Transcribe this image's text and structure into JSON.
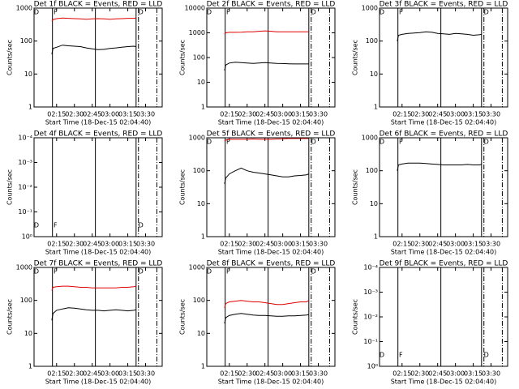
{
  "chart_data": [
    {
      "type": "line",
      "title": "Det 1f BLACK = Events, RED = LLD",
      "xlabel": "Start Time (18-Dec-15 02:04:40)",
      "ylabel": "Counts/sec",
      "log_y": true,
      "xlim": [
        -4,
        104
      ],
      "xticks": [
        {
          "value": 15,
          "label": "02:15"
        },
        {
          "value": 30,
          "label": "02:30"
        },
        {
          "value": 45,
          "label": "02:45"
        },
        {
          "value": 60,
          "label": "03:00"
        },
        {
          "value": 75,
          "label": "03:15"
        },
        {
          "value": 90,
          "label": "03:30"
        }
      ],
      "ylim": [
        1,
        1000
      ],
      "yticks": [
        1,
        10,
        100,
        1000
      ],
      "x": [
        11,
        12,
        15,
        20,
        25,
        30,
        35,
        40,
        45,
        50,
        55,
        60,
        65,
        70,
        75,
        80,
        82
      ],
      "series": [
        {
          "color": "#000000",
          "values": [
            40,
            60,
            65,
            75,
            72,
            70,
            68,
            62,
            58,
            55,
            56,
            60,
            62,
            65,
            68,
            70,
            68
          ]
        },
        {
          "color": "#e00000",
          "values": [
            400,
            450,
            480,
            500,
            490,
            480,
            470,
            460,
            470,
            480,
            470,
            460,
            470,
            480,
            490,
            490,
            500
          ]
        }
      ],
      "vlines": [
        {
          "x": 11.5,
          "style": "solid"
        },
        {
          "x": 47.7,
          "style": "solid"
        },
        {
          "x": 82,
          "style": "solid"
        },
        {
          "x": 84,
          "style": "dashdot"
        },
        {
          "x": 99.5,
          "style": "dashdot"
        }
      ],
      "marker_position": "top",
      "markers": [
        {
          "x": -2,
          "label": "D"
        },
        {
          "x": 14,
          "label": "F"
        },
        {
          "x": 86,
          "label": "D"
        }
      ]
    },
    {
      "type": "line",
      "title": "Det 2f BLACK = Events, RED = LLD",
      "xlabel": "Start Time (18-Dec-15 02:04:40)",
      "ylabel": "Counts/sec",
      "log_y": true,
      "xlim": [
        -4,
        104
      ],
      "xticks": [
        {
          "value": 15,
          "label": "02:15"
        },
        {
          "value": 30,
          "label": "02:30"
        },
        {
          "value": 45,
          "label": "02:45"
        },
        {
          "value": 60,
          "label": "03:00"
        },
        {
          "value": 75,
          "label": "03:15"
        },
        {
          "value": 90,
          "label": "03:30"
        }
      ],
      "ylim": [
        1,
        10000
      ],
      "yticks": [
        1,
        10,
        100,
        1000,
        10000
      ],
      "x": [
        11,
        12,
        15,
        20,
        25,
        30,
        35,
        40,
        45,
        50,
        55,
        60,
        65,
        70,
        75,
        80,
        82
      ],
      "series": [
        {
          "color": "#000000",
          "values": [
            30,
            50,
            60,
            65,
            62,
            60,
            58,
            60,
            62,
            60,
            58,
            57,
            56,
            55,
            55,
            55,
            55
          ]
        },
        {
          "color": "#e00000",
          "values": [
            900,
            1000,
            1050,
            1050,
            1060,
            1100,
            1100,
            1150,
            1200,
            1150,
            1100,
            1100,
            1100,
            1100,
            1100,
            1100,
            1100
          ]
        }
      ],
      "vlines": [
        {
          "x": 11.5,
          "style": "solid"
        },
        {
          "x": 47.7,
          "style": "solid"
        },
        {
          "x": 82,
          "style": "solid"
        },
        {
          "x": 84,
          "style": "dashdot"
        },
        {
          "x": 99.5,
          "style": "dashdot"
        }
      ],
      "marker_position": "top",
      "markers": [
        {
          "x": -2,
          "label": "D"
        },
        {
          "x": 14,
          "label": "F"
        },
        {
          "x": 86,
          "label": "D"
        }
      ]
    },
    {
      "type": "line",
      "title": "Det 3f BLACK = Events, RED = LLD",
      "xlabel": "Start Time (18-Dec-15 02:04:40)",
      "ylabel": "Counts/sec",
      "log_y": true,
      "xlim": [
        -4,
        104
      ],
      "xticks": [
        {
          "value": 15,
          "label": "02:15"
        },
        {
          "value": 30,
          "label": "02:30"
        },
        {
          "value": 45,
          "label": "02:45"
        },
        {
          "value": 60,
          "label": "03:00"
        },
        {
          "value": 75,
          "label": "03:15"
        },
        {
          "value": 90,
          "label": "03:30"
        }
      ],
      "ylim": [
        1,
        1000
      ],
      "yticks": [
        1,
        10,
        100,
        1000
      ],
      "x": [
        11,
        12,
        15,
        20,
        25,
        30,
        35,
        40,
        45,
        50,
        55,
        60,
        65,
        70,
        75,
        80,
        82
      ],
      "series": [
        {
          "color": "#000000",
          "values": [
            100,
            150,
            160,
            170,
            175,
            180,
            190,
            185,
            170,
            165,
            160,
            170,
            165,
            160,
            150,
            155,
            160
          ]
        }
      ],
      "vlines": [
        {
          "x": 11.5,
          "style": "solid"
        },
        {
          "x": 47.7,
          "style": "solid"
        },
        {
          "x": 82,
          "style": "solid"
        },
        {
          "x": 84,
          "style": "dashdot"
        },
        {
          "x": 99.5,
          "style": "dashdot"
        }
      ],
      "marker_position": "top",
      "markers": [
        {
          "x": -2,
          "label": "D"
        },
        {
          "x": 14,
          "label": "F"
        },
        {
          "x": 86,
          "label": "D"
        }
      ]
    },
    {
      "type": "line",
      "title": "Det 4f BLACK = Events, RED = LLD",
      "xlabel": "Start Time (18-Dec-15 02:04:40)",
      "ylabel": "Counts/sec",
      "log_y": true,
      "xlim": [
        -4,
        104
      ],
      "xticks": [
        {
          "value": 15,
          "label": "02:15"
        },
        {
          "value": 30,
          "label": "02:30"
        },
        {
          "value": 45,
          "label": "02:45"
        },
        {
          "value": 60,
          "label": "03:00"
        },
        {
          "value": 75,
          "label": "03:15"
        },
        {
          "value": 90,
          "label": "03:30"
        }
      ],
      "ylim": [
        1,
        0.0001
      ],
      "yticks": [
        {
          "value": 1,
          "label": "10⁰"
        },
        {
          "value": 0.1,
          "label": "10⁻¹"
        },
        {
          "value": 0.01,
          "label": "10⁻²"
        },
        {
          "value": 0.001,
          "label": "10⁻³"
        },
        {
          "value": 0.0001,
          "label": "10⁻⁴"
        }
      ],
      "x": [],
      "series": [],
      "vlines": [
        {
          "x": 11.5,
          "style": "solid"
        },
        {
          "x": 47.7,
          "style": "solid"
        },
        {
          "x": 82,
          "style": "solid"
        },
        {
          "x": 84,
          "style": "dashdot"
        },
        {
          "x": 99.5,
          "style": "dashdot"
        }
      ],
      "marker_position": "bottom",
      "markers": [
        {
          "x": -2,
          "label": "D"
        },
        {
          "x": 14,
          "label": "F"
        },
        {
          "x": 86,
          "label": "D"
        }
      ]
    },
    {
      "type": "line",
      "title": "Det 5f BLACK = Events, RED = LLD",
      "xlabel": "Start Time (18-Dec-15 02:04:40)",
      "ylabel": "Counts/sec",
      "log_y": true,
      "xlim": [
        -4,
        104
      ],
      "xticks": [
        {
          "value": 15,
          "label": "02:15"
        },
        {
          "value": 30,
          "label": "02:30"
        },
        {
          "value": 45,
          "label": "02:45"
        },
        {
          "value": 60,
          "label": "03:00"
        },
        {
          "value": 75,
          "label": "03:15"
        },
        {
          "value": 90,
          "label": "03:30"
        }
      ],
      "ylim": [
        1,
        1000
      ],
      "yticks": [
        1,
        10,
        100,
        1000
      ],
      "x": [
        11,
        12,
        15,
        20,
        25,
        30,
        35,
        40,
        45,
        50,
        55,
        60,
        65,
        70,
        75,
        80,
        82
      ],
      "series": [
        {
          "color": "#000000",
          "values": [
            40,
            60,
            80,
            100,
            120,
            100,
            90,
            85,
            80,
            75,
            70,
            65,
            65,
            70,
            72,
            75,
            80
          ]
        },
        {
          "color": "#e00000",
          "values": [
            800,
            850,
            900,
            900,
            900,
            900,
            920,
            900,
            900,
            900,
            920,
            930,
            950,
            950,
            950,
            950,
            950
          ]
        }
      ],
      "vlines": [
        {
          "x": 11.5,
          "style": "solid"
        },
        {
          "x": 47.7,
          "style": "solid"
        },
        {
          "x": 82,
          "style": "solid"
        },
        {
          "x": 84,
          "style": "dashdot"
        },
        {
          "x": 99.5,
          "style": "dashdot"
        }
      ],
      "marker_position": "top",
      "markers": [
        {
          "x": -2,
          "label": "D"
        },
        {
          "x": 14,
          "label": "F"
        },
        {
          "x": 86,
          "label": "D"
        }
      ]
    },
    {
      "type": "line",
      "title": "Det 6f BLACK = Events, RED = LLD",
      "xlabel": "Start Time (18-Dec-15 02:04:40)",
      "ylabel": "Counts/sec",
      "log_y": true,
      "xlim": [
        -4,
        104
      ],
      "xticks": [
        {
          "value": 15,
          "label": "02:15"
        },
        {
          "value": 30,
          "label": "02:30"
        },
        {
          "value": 45,
          "label": "02:45"
        },
        {
          "value": 60,
          "label": "03:00"
        },
        {
          "value": 75,
          "label": "03:15"
        },
        {
          "value": 90,
          "label": "03:30"
        }
      ],
      "ylim": [
        1,
        1000
      ],
      "yticks": [
        1,
        10,
        100,
        1000
      ],
      "x": [
        11,
        12,
        15,
        20,
        25,
        30,
        35,
        40,
        45,
        50,
        55,
        60,
        65,
        70,
        75,
        80,
        82
      ],
      "series": [
        {
          "color": "#000000",
          "values": [
            100,
            150,
            160,
            170,
            170,
            170,
            165,
            160,
            155,
            150,
            150,
            150,
            150,
            155,
            150,
            150,
            155
          ]
        }
      ],
      "vlines": [
        {
          "x": 11.5,
          "style": "solid"
        },
        {
          "x": 47.7,
          "style": "solid"
        },
        {
          "x": 82,
          "style": "solid"
        },
        {
          "x": 84,
          "style": "dashdot"
        },
        {
          "x": 99.5,
          "style": "dashdot"
        }
      ],
      "marker_position": "top",
      "markers": [
        {
          "x": -2,
          "label": "D"
        },
        {
          "x": 14,
          "label": "F"
        },
        {
          "x": 86,
          "label": "D"
        }
      ]
    },
    {
      "type": "line",
      "title": "Det 7f BLACK = Events, RED = LLD",
      "xlabel": "Start Time (18-Dec-15 02:04:40)",
      "ylabel": "Counts/sec",
      "log_y": true,
      "xlim": [
        -4,
        104
      ],
      "xticks": [
        {
          "value": 15,
          "label": "02:15"
        },
        {
          "value": 30,
          "label": "02:30"
        },
        {
          "value": 45,
          "label": "02:45"
        },
        {
          "value": 60,
          "label": "03:00"
        },
        {
          "value": 75,
          "label": "03:15"
        },
        {
          "value": 90,
          "label": "03:30"
        }
      ],
      "ylim": [
        1,
        1000
      ],
      "yticks": [
        1,
        10,
        100,
        1000
      ],
      "x": [
        11,
        12,
        15,
        20,
        25,
        30,
        35,
        40,
        45,
        50,
        55,
        60,
        65,
        70,
        75,
        80,
        82
      ],
      "series": [
        {
          "color": "#000000",
          "values": [
            25,
            40,
            50,
            55,
            60,
            58,
            55,
            52,
            50,
            50,
            48,
            50,
            52,
            50,
            48,
            50,
            52
          ]
        },
        {
          "color": "#e00000",
          "values": [
            200,
            250,
            260,
            270,
            270,
            260,
            250,
            250,
            240,
            240,
            240,
            240,
            240,
            250,
            250,
            260,
            270
          ]
        }
      ],
      "vlines": [
        {
          "x": 11.5,
          "style": "solid"
        },
        {
          "x": 47.7,
          "style": "solid"
        },
        {
          "x": 82,
          "style": "solid"
        },
        {
          "x": 84,
          "style": "dashdot"
        },
        {
          "x": 99.5,
          "style": "dashdot"
        }
      ],
      "marker_position": "top",
      "markers": [
        {
          "x": -2,
          "label": "D"
        },
        {
          "x": 14,
          "label": "F"
        },
        {
          "x": 86,
          "label": "D"
        }
      ]
    },
    {
      "type": "line",
      "title": "Det 8f BLACK = Events, RED = LLD",
      "xlabel": "Start Time (18-Dec-15 02:04:40)",
      "ylabel": "Counts/sec",
      "log_y": true,
      "xlim": [
        -4,
        104
      ],
      "xticks": [
        {
          "value": 15,
          "label": "02:15"
        },
        {
          "value": 30,
          "label": "02:30"
        },
        {
          "value": 45,
          "label": "02:45"
        },
        {
          "value": 60,
          "label": "03:00"
        },
        {
          "value": 75,
          "label": "03:15"
        },
        {
          "value": 90,
          "label": "03:30"
        }
      ],
      "ylim": [
        1,
        1000
      ],
      "yticks": [
        1,
        10,
        100,
        1000
      ],
      "x": [
        11,
        12,
        15,
        20,
        25,
        30,
        35,
        40,
        45,
        50,
        55,
        60,
        65,
        70,
        75,
        80,
        82
      ],
      "series": [
        {
          "color": "#000000",
          "values": [
            20,
            30,
            35,
            38,
            40,
            38,
            36,
            35,
            35,
            34,
            33,
            33,
            34,
            34,
            35,
            36,
            37
          ]
        },
        {
          "color": "#e00000",
          "values": [
            60,
            80,
            90,
            95,
            100,
            95,
            90,
            90,
            85,
            80,
            75,
            75,
            80,
            85,
            90,
            90,
            100
          ]
        }
      ],
      "vlines": [
        {
          "x": 11.5,
          "style": "solid"
        },
        {
          "x": 47.7,
          "style": "solid"
        },
        {
          "x": 82,
          "style": "solid"
        },
        {
          "x": 84,
          "style": "dashdot"
        },
        {
          "x": 99.5,
          "style": "dashdot"
        }
      ],
      "marker_position": "top",
      "markers": [
        {
          "x": -2,
          "label": "D"
        },
        {
          "x": 14,
          "label": "F"
        },
        {
          "x": 86,
          "label": "D"
        }
      ]
    },
    {
      "type": "line",
      "title": "Det 9f BLACK = Events, RED = LLD",
      "xlabel": "Start Time (18-Dec-15 02:04:40)",
      "ylabel": "Counts/sec",
      "log_y": true,
      "xlim": [
        -4,
        104
      ],
      "xticks": [
        {
          "value": 15,
          "label": "02:15"
        },
        {
          "value": 30,
          "label": "02:30"
        },
        {
          "value": 45,
          "label": "02:45"
        },
        {
          "value": 60,
          "label": "03:00"
        },
        {
          "value": 75,
          "label": "03:15"
        },
        {
          "value": 90,
          "label": "03:30"
        }
      ],
      "ylim": [
        1,
        0.0001
      ],
      "yticks": [
        {
          "value": 1,
          "label": "10⁰"
        },
        {
          "value": 0.1,
          "label": "10⁻¹"
        },
        {
          "value": 0.01,
          "label": "10⁻²"
        },
        {
          "value": 0.001,
          "label": "10⁻³"
        },
        {
          "value": 0.0001,
          "label": "10⁻⁴"
        }
      ],
      "x": [],
      "series": [],
      "vlines": [
        {
          "x": 11.5,
          "style": "solid"
        },
        {
          "x": 47.7,
          "style": "solid"
        },
        {
          "x": 82,
          "style": "solid"
        },
        {
          "x": 84,
          "style": "dashdot"
        },
        {
          "x": 99.5,
          "style": "dashdot"
        }
      ],
      "marker_position": "bottom",
      "markers": [
        {
          "x": -2,
          "label": "D"
        },
        {
          "x": 14,
          "label": "F"
        },
        {
          "x": 86,
          "label": "D"
        }
      ]
    }
  ]
}
